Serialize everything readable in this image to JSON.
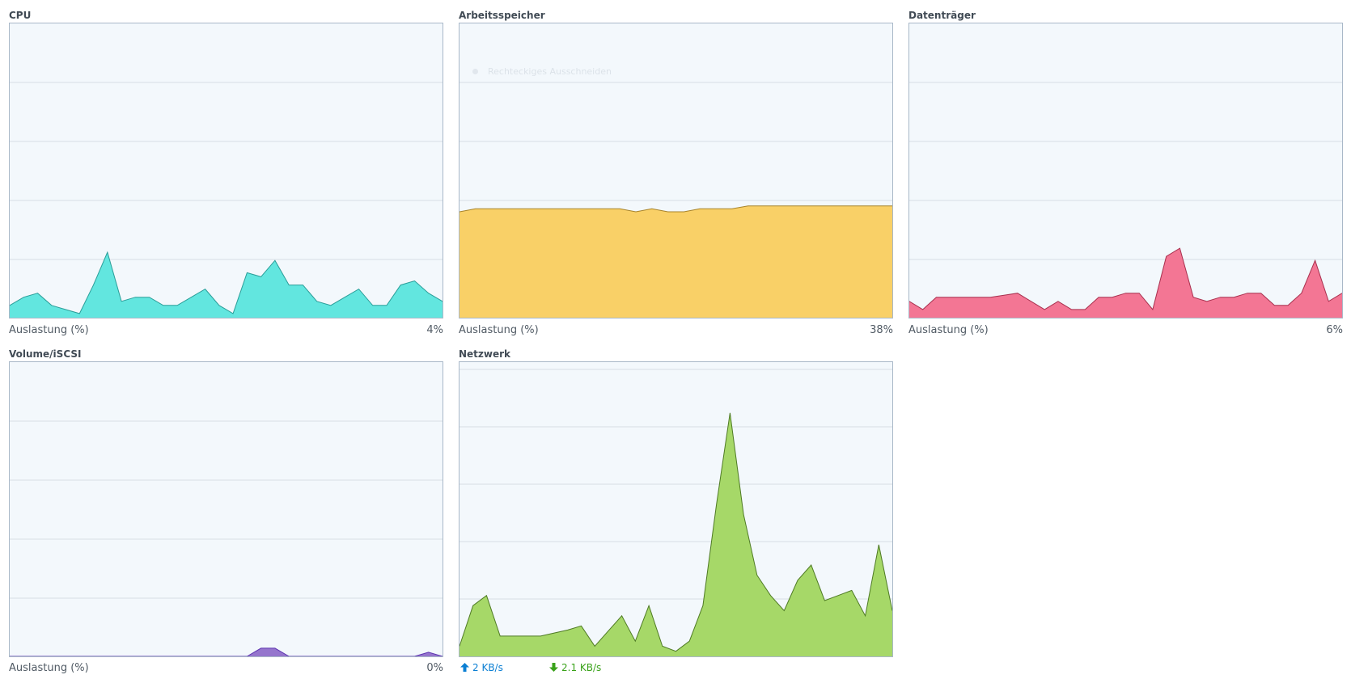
{
  "panels": {
    "cpu": {
      "title": "CPU",
      "footer_label": "Auslastung (%)",
      "footer_value": "4%",
      "fill": "#62e6df",
      "stroke": "#2a9d98",
      "series": [
        3,
        5,
        6,
        3,
        2,
        1,
        8,
        16,
        4,
        5,
        5,
        3,
        3,
        5,
        7,
        3,
        1,
        11,
        10,
        14,
        8,
        8,
        4,
        3,
        5,
        7,
        3,
        3,
        8,
        9,
        6,
        4
      ]
    },
    "memory": {
      "title": "Arbeitsspeicher",
      "footer_label": "Auslastung (%)",
      "footer_value": "38%",
      "fill": "#f9d067",
      "stroke": "#a8832a",
      "ghost_menu_text": "Rechteckiges Ausschneiden",
      "series": [
        36,
        37,
        37,
        37,
        37,
        37,
        37,
        37,
        37,
        37,
        37,
        36,
        37,
        36,
        36,
        37,
        37,
        37,
        38,
        38,
        38,
        38,
        38,
        38,
        38,
        38,
        38,
        38
      ]
    },
    "disk": {
      "title": "Datenträger",
      "footer_label": "Auslastung (%)",
      "footer_value": "6%",
      "fill": "#f37694",
      "stroke": "#a8304e",
      "series": [
        4,
        2,
        5,
        5,
        5,
        5,
        5,
        5.5,
        6,
        4,
        2,
        4,
        2,
        2,
        5,
        5,
        6,
        6,
        2,
        15,
        17,
        5,
        4,
        5,
        5,
        6,
        6,
        3,
        3,
        6,
        14,
        4,
        6
      ]
    },
    "volume": {
      "title": "Volume/iSCSI",
      "footer_label": "Auslastung (%)",
      "footer_value": "0%",
      "fill": "#9575cd",
      "stroke": "#5e35b1",
      "series": [
        0,
        0,
        0,
        0,
        0,
        0,
        0,
        0,
        0,
        0,
        0,
        0,
        0,
        0,
        0,
        0,
        0,
        0,
        2,
        2,
        0,
        0,
        0,
        0,
        0,
        0,
        0,
        0,
        0,
        0,
        1,
        0
      ]
    },
    "network": {
      "title": "Netzwerk",
      "upload": "2 KB/s",
      "download": "2.1 KB/s",
      "upload_color": "#0b7fd3",
      "download_color": "#3aa21a",
      "fill": "#a6d868",
      "stroke": "#4e7a24",
      "series": [
        1,
        5,
        6,
        2,
        2,
        2,
        2,
        2.3,
        2.6,
        3,
        1,
        2.5,
        4,
        1.5,
        5,
        1,
        0.5,
        1.5,
        5,
        15,
        24,
        14,
        8,
        6,
        4.5,
        7.5,
        9,
        5.5,
        6,
        6.5,
        4,
        11,
        4.5
      ]
    }
  }
}
